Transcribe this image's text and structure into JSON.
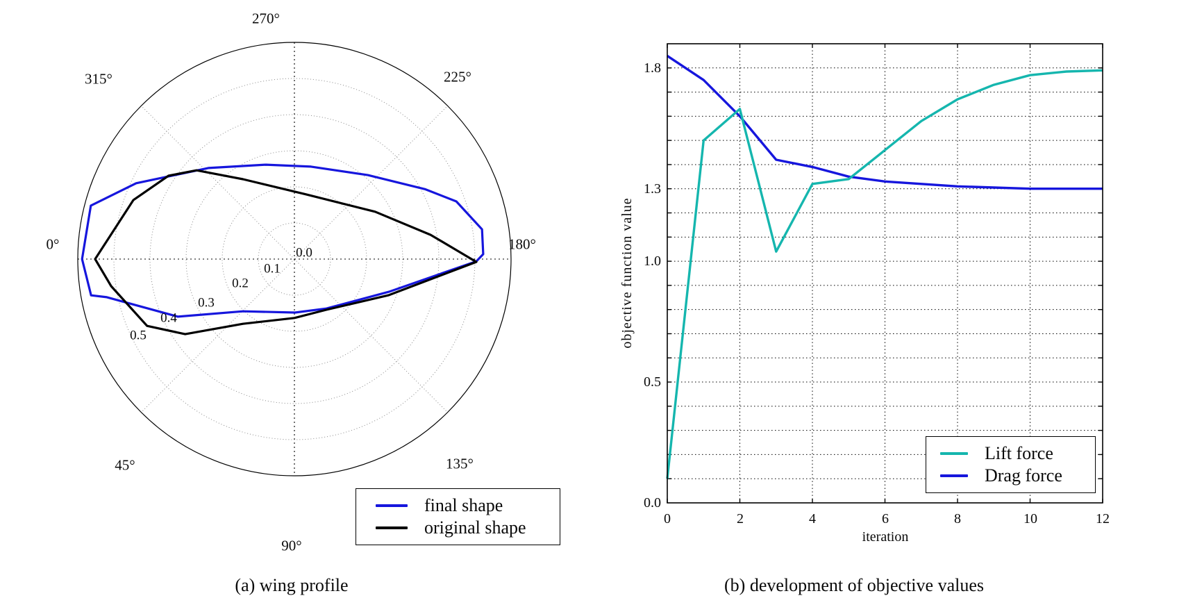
{
  "figure": {
    "caption_a": "(a) wing profile",
    "caption_b": "(b) development of objective values"
  },
  "chart_data": [
    {
      "id": "wing-profile-polar",
      "type": "line",
      "projection": "polar",
      "caption": "(a) wing profile",
      "angle_labels": [
        "0°",
        "45°",
        "90°",
        "135°",
        "180°",
        "225°",
        "270°",
        "315°"
      ],
      "radial_tick_labels": [
        "0.0",
        "0.1",
        "0.2",
        "0.3",
        "0.4",
        "0.5"
      ],
      "radial_tick_values": [
        0.0,
        0.1,
        0.2,
        0.3,
        0.4,
        0.5
      ],
      "r_max": 0.6,
      "grid": "dotted rings every 0.1, dotted spokes every 45°",
      "legend_position": "below lower-right, outside axes",
      "series": [
        {
          "name": "final shape",
          "color": "#1616dd",
          "closed": true,
          "points_theta_r": [
            [
              0.0,
              0.588
            ],
            [
              345.3,
              0.583
            ],
            [
              334.4,
              0.486
            ],
            [
              313.4,
              0.347
            ],
            [
              286.8,
              0.273
            ],
            [
              259.8,
              0.26
            ],
            [
              228.8,
              0.309
            ],
            [
              208.2,
              0.41
            ],
            [
              199.6,
              0.476
            ],
            [
              189.0,
              0.526
            ],
            [
              181.5,
              0.523
            ],
            [
              179.3,
              0.504
            ],
            [
              160.9,
              0.277
            ],
            [
              122.9,
              0.163
            ],
            [
              90.7,
              0.148
            ],
            [
              45.4,
              0.203
            ],
            [
              26.3,
              0.36
            ],
            [
              11.5,
              0.53
            ],
            [
              10.1,
              0.572
            ]
          ]
        },
        {
          "name": "original shape",
          "color": "#000000",
          "closed": true,
          "points_theta_r": [
            [
              0.0,
              0.552
            ],
            [
              339.9,
              0.475
            ],
            [
              326.5,
              0.418
            ],
            [
              317.8,
              0.366
            ],
            [
              302.8,
              0.263
            ],
            [
              260.2,
              0.182
            ],
            [
              210.4,
              0.259
            ],
            [
              190.1,
              0.383
            ],
            [
              179.1,
              0.504
            ],
            [
              159.1,
              0.28
            ],
            [
              122.2,
              0.166
            ],
            [
              90.0,
              0.163
            ],
            [
              51.5,
              0.229
            ],
            [
              34.5,
              0.367
            ],
            [
              24.4,
              0.448
            ],
            [
              8.4,
              0.513
            ]
          ]
        }
      ]
    },
    {
      "id": "objective-development",
      "type": "line",
      "caption": "(b) development of objective values",
      "xlabel": "iteration",
      "ylabel": "objective function value",
      "xlim": [
        0,
        12
      ],
      "ylim": [
        0.0,
        1.9
      ],
      "x_tick_labels": [
        "0",
        "2",
        "4",
        "6",
        "8",
        "10",
        "12"
      ],
      "x_tick_values": [
        0,
        2,
        4,
        6,
        8,
        10,
        12
      ],
      "y_tick_labels": [
        "0.0",
        "0.5",
        "1.0",
        "1.3",
        "1.8"
      ],
      "y_tick_values": [
        0.0,
        0.5,
        1.0,
        1.3,
        1.8
      ],
      "grid": "black dotted; horizontal every 0.1 up to 1.8, vertical every 2 iterations",
      "legend_position": "lower right, inside axes",
      "x": [
        0,
        1,
        2,
        3,
        4,
        5,
        6,
        7,
        8,
        9,
        10,
        11,
        12
      ],
      "series": [
        {
          "name": "Lift force",
          "color": "#15b6ae",
          "values": [
            0.1,
            1.5,
            1.63,
            1.04,
            1.32,
            1.34,
            1.46,
            1.58,
            1.67,
            1.73,
            1.77,
            1.785,
            1.79
          ]
        },
        {
          "name": "Drag force",
          "color": "#1616dd",
          "values": [
            1.85,
            1.75,
            1.6,
            1.42,
            1.39,
            1.35,
            1.33,
            1.32,
            1.31,
            1.305,
            1.3,
            1.3,
            1.3
          ]
        }
      ]
    }
  ]
}
